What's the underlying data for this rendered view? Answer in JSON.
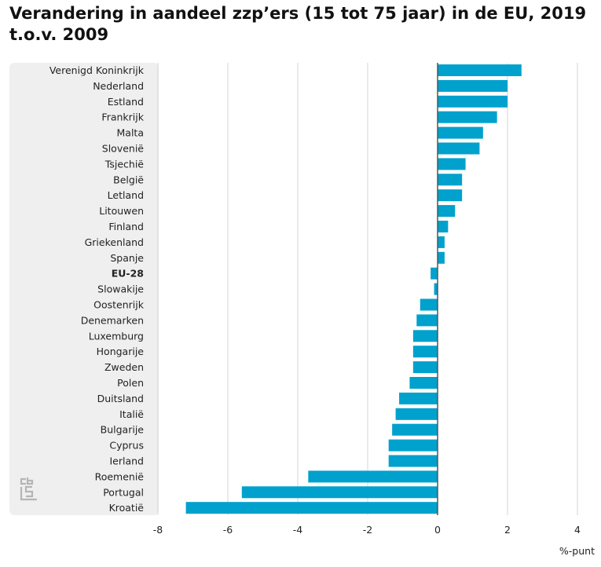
{
  "title_lines": [
    "Verandering in aandeel zzp’ers (15 tot 75 jaar) in de EU, 2019",
    "t.o.v. 2009"
  ],
  "colors": {
    "bar": "#00a1cd",
    "label_panel": "#efefef",
    "grid": "#d6d6d6",
    "axis": "#555555",
    "logo": "#b5b5b5"
  },
  "logo_icon": "cbs-logo-icon",
  "chart_data": {
    "type": "bar",
    "orientation": "horizontal",
    "title": "Verandering in aandeel zzp’ers (15 tot 75 jaar) in de EU, 2019 t.o.v. 2009",
    "xlabel": "%-punt",
    "ylabel": "",
    "xlim": [
      -8,
      4
    ],
    "xticks": [
      -8,
      -6,
      -4,
      -2,
      0,
      2,
      4
    ],
    "grid": true,
    "highlighted_category": "EU-28",
    "categories": [
      "Verenigd Koninkrijk",
      "Nederland",
      "Estland",
      "Frankrijk",
      "Malta",
      "Slovenië",
      "Tsjechië",
      "België",
      "Letland",
      "Litouwen",
      "Finland",
      "Griekenland",
      "Spanje",
      "EU-28",
      "Slowakije",
      "Oostenrijk",
      "Denemarken",
      "Luxemburg",
      "Hongarije",
      "Zweden",
      "Polen",
      "Duitsland",
      "Italië",
      "Bulgarije",
      "Cyprus",
      "Ierland",
      "Roemenië",
      "Portugal",
      "Kroatië"
    ],
    "values": [
      2.4,
      2.0,
      2.0,
      1.7,
      1.3,
      1.2,
      0.8,
      0.7,
      0.7,
      0.5,
      0.3,
      0.2,
      0.2,
      -0.2,
      -0.1,
      -0.5,
      -0.6,
      -0.7,
      -0.7,
      -0.7,
      -0.8,
      -1.1,
      -1.2,
      -1.3,
      -1.4,
      -1.4,
      -3.7,
      -5.6,
      -7.2
    ]
  }
}
